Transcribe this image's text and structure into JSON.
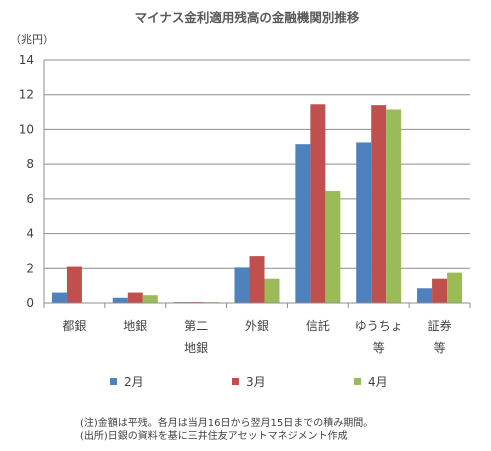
{
  "chart_data": {
    "type": "bar",
    "title": "マイナス金利適用残高の金融機関別推移",
    "unit_label": "（兆円）",
    "ylim": [
      0,
      14
    ],
    "yticks": [
      0,
      2,
      4,
      6,
      8,
      10,
      12,
      14
    ],
    "grid": true,
    "legend_position": "bottom",
    "categories": [
      [
        "都銀"
      ],
      [
        "地銀"
      ],
      [
        "第二",
        "地銀"
      ],
      [
        "外銀"
      ],
      [
        "信託"
      ],
      [
        "ゆうちょ",
        "等"
      ],
      [
        "証券",
        "等"
      ]
    ],
    "series": [
      {
        "name": "2月",
        "color": "#4f81bd",
        "values": [
          0.6,
          0.3,
          0.05,
          2.05,
          9.15,
          9.25,
          0.85
        ]
      },
      {
        "name": "3月",
        "color": "#c0504d",
        "values": [
          2.1,
          0.6,
          0.05,
          2.7,
          11.45,
          11.4,
          1.4
        ]
      },
      {
        "name": "4月",
        "color": "#9bbb59",
        "values": [
          0,
          0.45,
          0.05,
          1.4,
          6.45,
          11.15,
          1.75
        ]
      }
    ],
    "notes": [
      "(注)金額は平残。各月は当月16日から翌月15日までの積み期間。",
      "(出所)日銀の資料を基に三井住友アセットマネジメント作成"
    ]
  }
}
